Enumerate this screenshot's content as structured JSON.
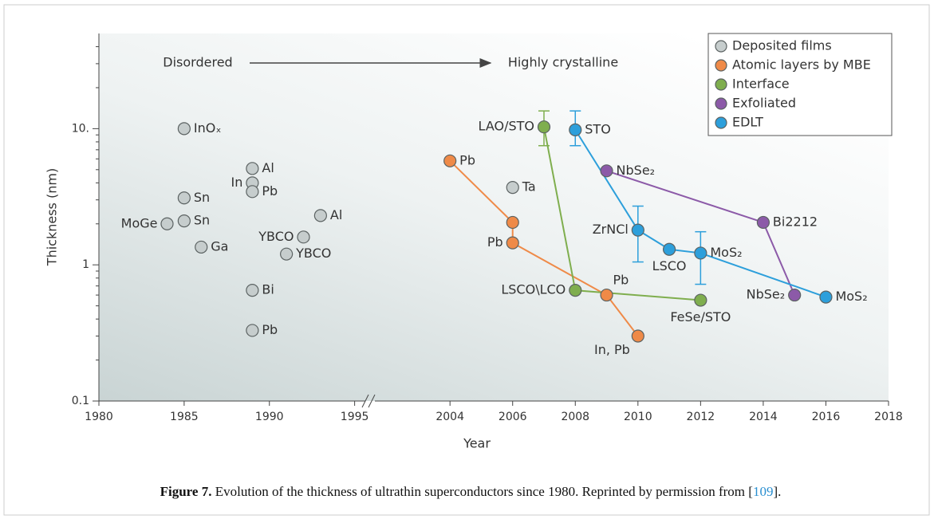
{
  "chart_data": {
    "type": "scatter",
    "x_label": "Year",
    "y_label": "Thickness (nm)",
    "annotations": [
      "Disordered",
      "Highly crystalline"
    ],
    "xlim": [
      1980,
      2018
    ],
    "x_break": [
      1996,
      2001.5
    ],
    "xticks": [
      1980,
      1985,
      1990,
      1995,
      2004,
      2006,
      2008,
      2010,
      2012,
      2014,
      2016,
      2018
    ],
    "ylim": [
      0.1,
      50
    ],
    "log_y": true,
    "yticks": [
      0.1,
      1,
      {
        "value": 10,
        "label": "10."
      }
    ],
    "yminor": [
      0.2,
      0.3,
      0.4,
      0.5,
      0.6,
      0.7,
      0.8,
      0.9,
      2,
      3,
      4,
      5,
      6,
      7,
      8,
      9,
      20,
      30,
      40
    ],
    "legend": "upper right",
    "series": [
      {
        "name": "Deposited films",
        "color": "#c6cdcd",
        "connected": false,
        "x": [
          1985,
          1989,
          1989,
          1989,
          1985,
          1985,
          1984,
          1993,
          1992,
          1991,
          1986,
          1989,
          1989,
          2006
        ],
        "values": [
          10,
          5.1,
          4.0,
          3.45,
          3.1,
          2.1,
          2.0,
          2.3,
          1.6,
          1.2,
          1.35,
          0.65,
          0.33,
          3.7
        ],
        "labels": [
          "InOₓ",
          "Al",
          "In",
          "Pb",
          "Sn",
          "Sn",
          "MoGe",
          "Al",
          "YBCO",
          "YBCO",
          "Ga",
          "Bi",
          "Pb",
          "Ta"
        ]
      },
      {
        "name": "Atomic layers by MBE",
        "color": "#ef8a48",
        "connected": true,
        "x": [
          2004,
          2006,
          2006,
          2009,
          2010
        ],
        "values": [
          5.8,
          2.05,
          1.45,
          0.6,
          0.3
        ],
        "labels": [
          "Pb",
          null,
          "Pb",
          "Pb",
          "In, Pb"
        ]
      },
      {
        "name": "Interface",
        "color": "#7fae4e",
        "connected": true,
        "x": [
          2007,
          2008,
          2012
        ],
        "values": [
          10.3,
          0.65,
          0.55
        ],
        "labels": [
          "LAO/STO",
          "LSCO\\LCO",
          "FeSe/STO"
        ],
        "errors": [
          [
            7.5,
            13.5
          ],
          null,
          null
        ]
      },
      {
        "name": "Exfoliated",
        "color": "#8c5aa8",
        "connected": true,
        "x": [
          2009,
          2014,
          2015
        ],
        "values": [
          4.9,
          2.05,
          0.6
        ],
        "labels": [
          "NbSe₂",
          "Bi2212",
          "NbSe₂"
        ]
      },
      {
        "name": "EDLT",
        "color": "#2d9fdb",
        "connected": true,
        "x": [
          2008,
          2010,
          2011,
          2012,
          2016
        ],
        "values": [
          9.8,
          1.8,
          1.3,
          1.22,
          0.58
        ],
        "labels": [
          "STO",
          "ZrNCl",
          "LSCO",
          "MoS₂",
          "MoS₂"
        ],
        "errors": [
          [
            7.5,
            13.5
          ],
          [
            1.05,
            2.7
          ],
          null,
          [
            0.72,
            1.75
          ],
          null
        ]
      }
    ]
  },
  "caption": {
    "label": "Figure 7.",
    "text": " Evolution of the thickness of ultrathin superconductors since 1980. Reprinted by permission from [",
    "ref": "109",
    "after": "]."
  }
}
